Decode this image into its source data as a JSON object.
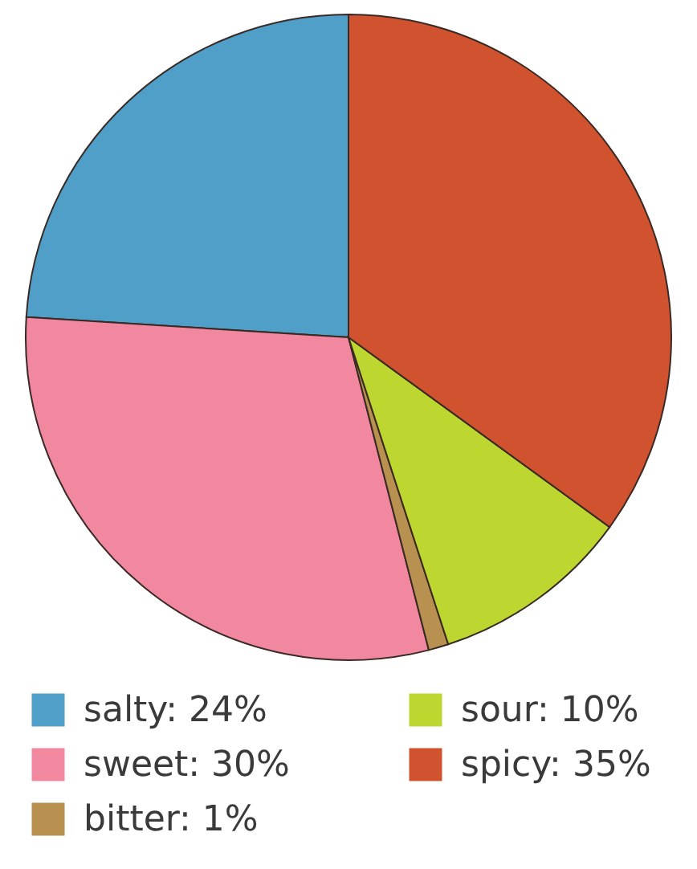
{
  "chart_data": {
    "type": "pie",
    "categories": [
      "salty: 24%",
      "sweet: 30%",
      "bitter: 1%",
      "sour: 10%",
      "spicy: 35%"
    ],
    "values": [
      24,
      30,
      1,
      10,
      35
    ],
    "colors": [
      "#4f9fc8",
      "#f287a0",
      "#b8904f",
      "#bdd630",
      "#d0522e"
    ],
    "legend": "bottom"
  }
}
